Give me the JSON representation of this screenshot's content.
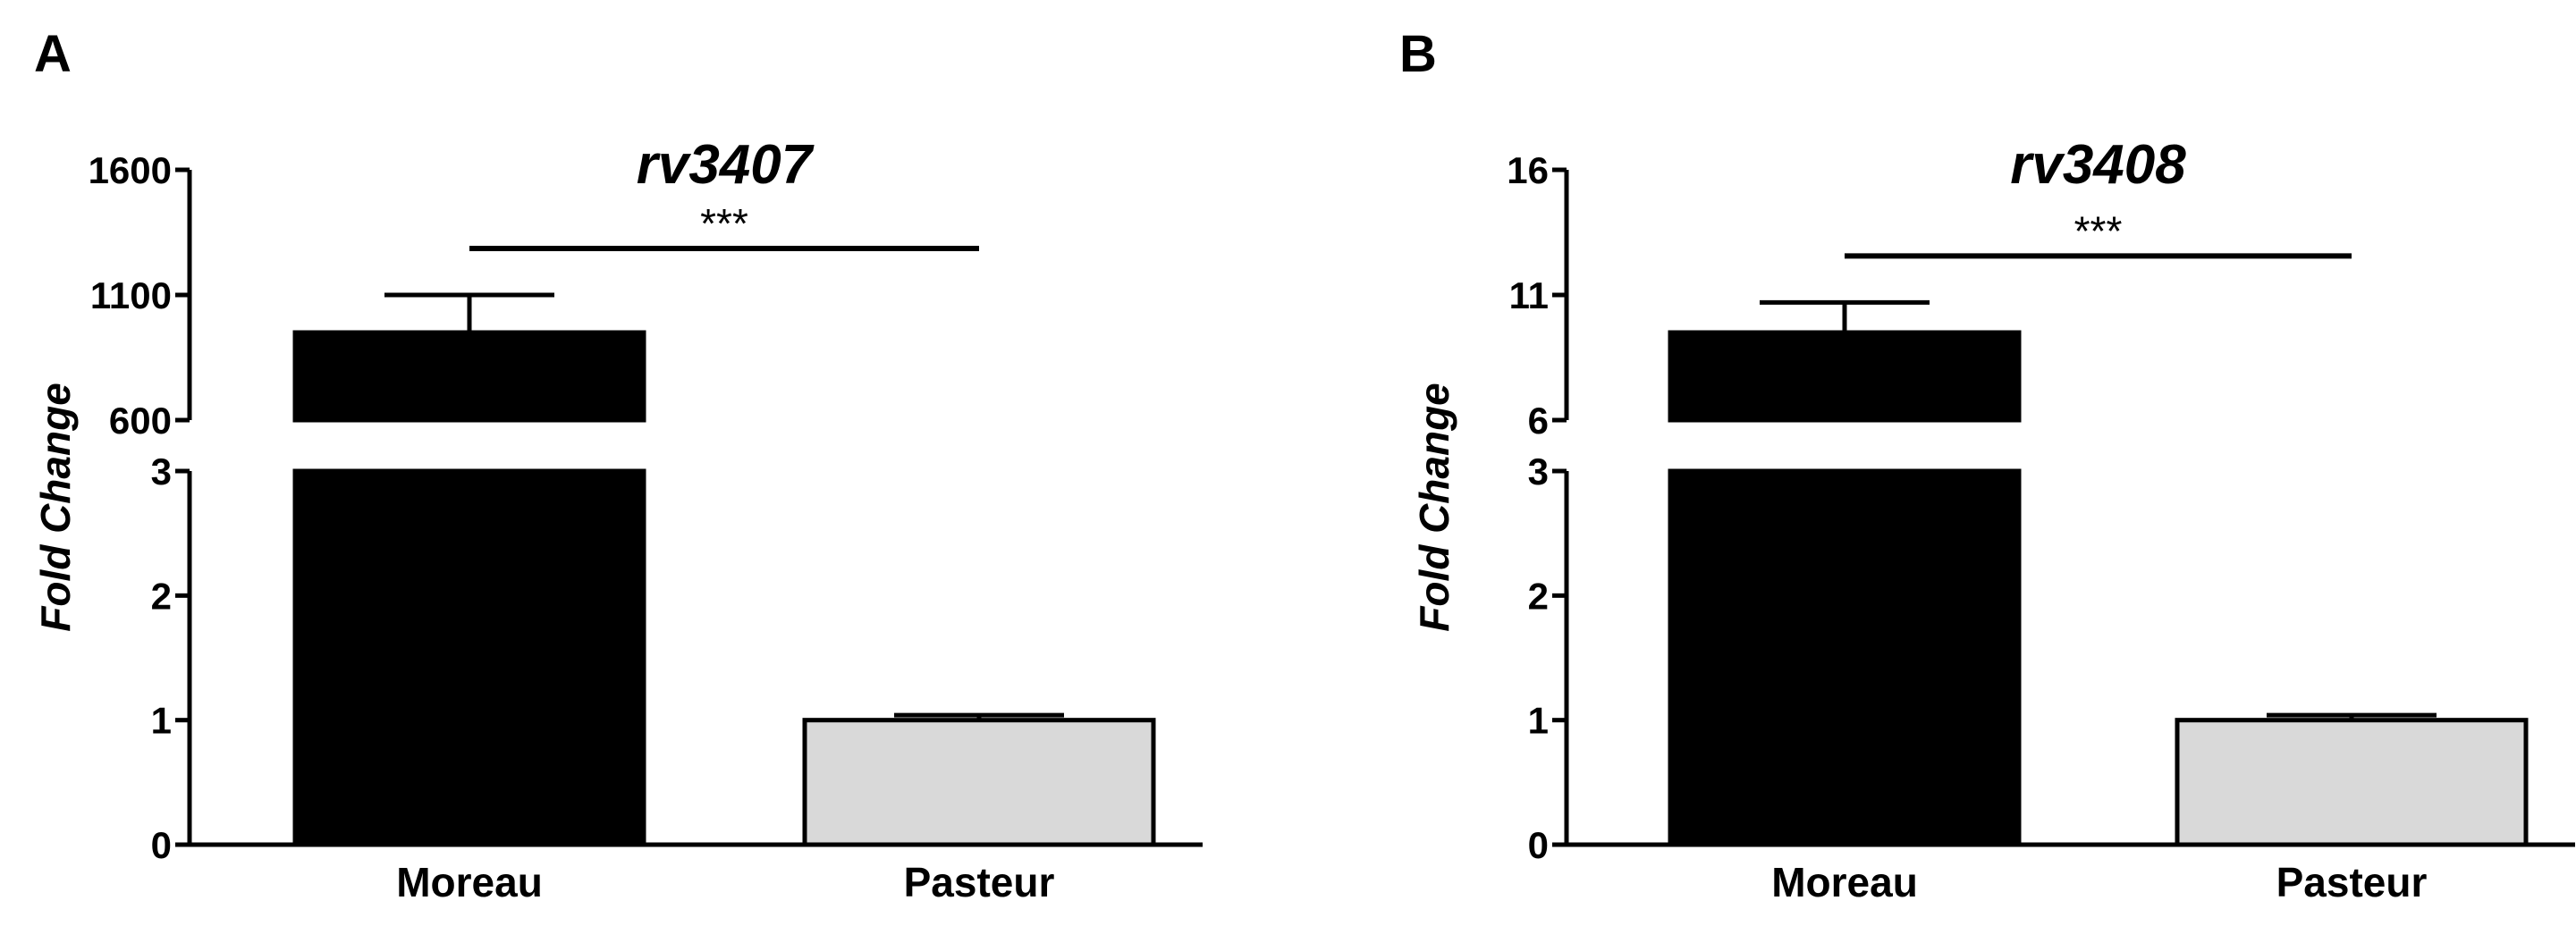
{
  "chart_data": [
    {
      "type": "bar",
      "panel": "A",
      "title": "rv3407",
      "xlabel": "",
      "ylabel": "Fold Change",
      "categories": [
        "Moreau",
        "Pasteur"
      ],
      "values": [
        950,
        1
      ],
      "error": [
        150,
        0.04
      ],
      "colors": [
        "#000000",
        "#d9d9d9"
      ],
      "y_axis_break": true,
      "lower_segment": {
        "ylim": [
          0,
          3
        ],
        "ticks": [
          0,
          1,
          2,
          3
        ]
      },
      "upper_segment": {
        "ylim": [
          600,
          1600
        ],
        "ticks": [
          600,
          1100,
          1600
        ]
      },
      "significance": {
        "between": [
          "Moreau",
          "Pasteur"
        ],
        "label": "***"
      },
      "grid": false,
      "legend": "none"
    },
    {
      "type": "bar",
      "panel": "B",
      "title": "rv3408",
      "xlabel": "",
      "ylabel": "Fold Change",
      "categories": [
        "Moreau",
        "Pasteur"
      ],
      "values": [
        9.5,
        1
      ],
      "error": [
        1.2,
        0.04
      ],
      "colors": [
        "#000000",
        "#d9d9d9"
      ],
      "y_axis_break": true,
      "lower_segment": {
        "ylim": [
          0,
          3
        ],
        "ticks": [
          0,
          1,
          2,
          3
        ]
      },
      "upper_segment": {
        "ylim": [
          6,
          16
        ],
        "ticks": [
          6,
          11,
          16
        ]
      },
      "significance": {
        "between": [
          "Moreau",
          "Pasteur"
        ],
        "label": "***"
      },
      "grid": false,
      "legend": "none"
    }
  ]
}
